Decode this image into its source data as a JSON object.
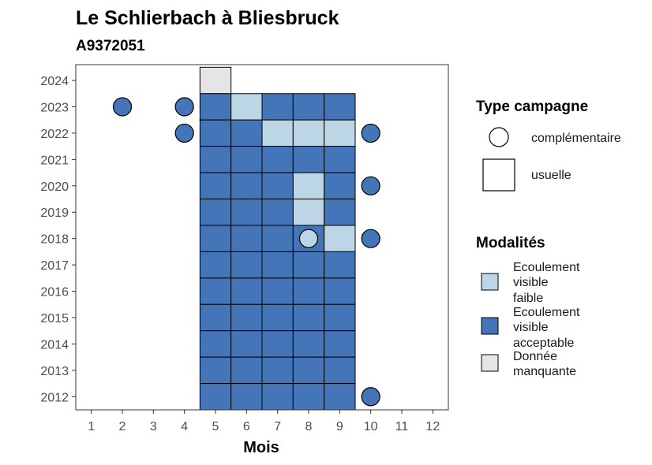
{
  "chart_data": {
    "type": "heatmap",
    "title": "Le Schlierbach à Bliesbruck",
    "subtitle": "A9372051",
    "xlabel": "Mois",
    "ylabel": "",
    "x_ticks": [
      "1",
      "2",
      "3",
      "4",
      "5",
      "6",
      "7",
      "8",
      "9",
      "10",
      "11",
      "12"
    ],
    "y_ticks": [
      "2012",
      "2013",
      "2014",
      "2015",
      "2016",
      "2017",
      "2018",
      "2019",
      "2020",
      "2021",
      "2022",
      "2023",
      "2024"
    ],
    "xlim": [
      0.5,
      12.5
    ],
    "ylim": [
      2011.5,
      2024.6
    ],
    "grid": false,
    "legend_position": "right",
    "colors": {
      "faible": "#bcd6e6",
      "acceptable": "#4375b8",
      "manquante": "#e5e5e5"
    },
    "legends": {
      "type": {
        "title": "Type campagne",
        "items": [
          {
            "key": "complementaire",
            "label": "complémentaire",
            "shape": "circle"
          },
          {
            "key": "usuelle",
            "label": "usuelle",
            "shape": "square"
          }
        ]
      },
      "modalites": {
        "title": "Modalités",
        "items": [
          {
            "key": "faible",
            "label": "Ecoulement visible faible"
          },
          {
            "key": "acceptable",
            "label": "Ecoulement visible acceptable"
          },
          {
            "key": "manquante",
            "label": "Donnée manquante"
          }
        ]
      }
    },
    "observations": [
      {
        "year": 2024,
        "month": 5,
        "modalite": "manquante",
        "type": "usuelle"
      },
      {
        "year": 2023,
        "month": 2,
        "modalite": "acceptable",
        "type": "complementaire"
      },
      {
        "year": 2023,
        "month": 4,
        "modalite": "acceptable",
        "type": "complementaire"
      },
      {
        "year": 2023,
        "month": 5,
        "modalite": "acceptable",
        "type": "usuelle"
      },
      {
        "year": 2023,
        "month": 6,
        "modalite": "faible",
        "type": "usuelle"
      },
      {
        "year": 2023,
        "month": 7,
        "modalite": "acceptable",
        "type": "usuelle"
      },
      {
        "year": 2023,
        "month": 8,
        "modalite": "acceptable",
        "type": "usuelle"
      },
      {
        "year": 2023,
        "month": 9,
        "modalite": "acceptable",
        "type": "usuelle"
      },
      {
        "year": 2022,
        "month": 4,
        "modalite": "acceptable",
        "type": "complementaire"
      },
      {
        "year": 2022,
        "month": 5,
        "modalite": "acceptable",
        "type": "usuelle"
      },
      {
        "year": 2022,
        "month": 6,
        "modalite": "acceptable",
        "type": "usuelle"
      },
      {
        "year": 2022,
        "month": 7,
        "modalite": "faible",
        "type": "usuelle"
      },
      {
        "year": 2022,
        "month": 8,
        "modalite": "faible",
        "type": "usuelle"
      },
      {
        "year": 2022,
        "month": 9,
        "modalite": "faible",
        "type": "usuelle"
      },
      {
        "year": 2022,
        "month": 10,
        "modalite": "acceptable",
        "type": "complementaire"
      },
      {
        "year": 2021,
        "month": 5,
        "modalite": "acceptable",
        "type": "usuelle"
      },
      {
        "year": 2021,
        "month": 6,
        "modalite": "acceptable",
        "type": "usuelle"
      },
      {
        "year": 2021,
        "month": 7,
        "modalite": "acceptable",
        "type": "usuelle"
      },
      {
        "year": 2021,
        "month": 8,
        "modalite": "acceptable",
        "type": "usuelle"
      },
      {
        "year": 2021,
        "month": 9,
        "modalite": "acceptable",
        "type": "usuelle"
      },
      {
        "year": 2020,
        "month": 5,
        "modalite": "acceptable",
        "type": "usuelle"
      },
      {
        "year": 2020,
        "month": 6,
        "modalite": "acceptable",
        "type": "usuelle"
      },
      {
        "year": 2020,
        "month": 7,
        "modalite": "acceptable",
        "type": "usuelle"
      },
      {
        "year": 2020,
        "month": 8,
        "modalite": "faible",
        "type": "usuelle"
      },
      {
        "year": 2020,
        "month": 9,
        "modalite": "acceptable",
        "type": "usuelle"
      },
      {
        "year": 2020,
        "month": 10,
        "modalite": "acceptable",
        "type": "complementaire"
      },
      {
        "year": 2019,
        "month": 5,
        "modalite": "acceptable",
        "type": "usuelle"
      },
      {
        "year": 2019,
        "month": 6,
        "modalite": "acceptable",
        "type": "usuelle"
      },
      {
        "year": 2019,
        "month": 7,
        "modalite": "acceptable",
        "type": "usuelle"
      },
      {
        "year": 2019,
        "month": 8,
        "modalite": "faible",
        "type": "usuelle"
      },
      {
        "year": 2019,
        "month": 9,
        "modalite": "acceptable",
        "type": "usuelle"
      },
      {
        "year": 2018,
        "month": 5,
        "modalite": "acceptable",
        "type": "usuelle"
      },
      {
        "year": 2018,
        "month": 6,
        "modalite": "acceptable",
        "type": "usuelle"
      },
      {
        "year": 2018,
        "month": 7,
        "modalite": "acceptable",
        "type": "usuelle"
      },
      {
        "year": 2018,
        "month": 8,
        "modalite": "acceptable",
        "type": "usuelle"
      },
      {
        "year": 2018,
        "month": 8,
        "modalite": "faible",
        "type": "complementaire"
      },
      {
        "year": 2018,
        "month": 9,
        "modalite": "faible",
        "type": "usuelle"
      },
      {
        "year": 2018,
        "month": 10,
        "modalite": "acceptable",
        "type": "complementaire"
      },
      {
        "year": 2017,
        "month": 5,
        "modalite": "acceptable",
        "type": "usuelle"
      },
      {
        "year": 2017,
        "month": 6,
        "modalite": "acceptable",
        "type": "usuelle"
      },
      {
        "year": 2017,
        "month": 7,
        "modalite": "acceptable",
        "type": "usuelle"
      },
      {
        "year": 2017,
        "month": 8,
        "modalite": "acceptable",
        "type": "usuelle"
      },
      {
        "year": 2017,
        "month": 9,
        "modalite": "acceptable",
        "type": "usuelle"
      },
      {
        "year": 2016,
        "month": 5,
        "modalite": "acceptable",
        "type": "usuelle"
      },
      {
        "year": 2016,
        "month": 6,
        "modalite": "acceptable",
        "type": "usuelle"
      },
      {
        "year": 2016,
        "month": 7,
        "modalite": "acceptable",
        "type": "usuelle"
      },
      {
        "year": 2016,
        "month": 8,
        "modalite": "acceptable",
        "type": "usuelle"
      },
      {
        "year": 2016,
        "month": 9,
        "modalite": "acceptable",
        "type": "usuelle"
      },
      {
        "year": 2015,
        "month": 5,
        "modalite": "acceptable",
        "type": "usuelle"
      },
      {
        "year": 2015,
        "month": 6,
        "modalite": "acceptable",
        "type": "usuelle"
      },
      {
        "year": 2015,
        "month": 7,
        "modalite": "acceptable",
        "type": "usuelle"
      },
      {
        "year": 2015,
        "month": 8,
        "modalite": "acceptable",
        "type": "usuelle"
      },
      {
        "year": 2015,
        "month": 9,
        "modalite": "acceptable",
        "type": "usuelle"
      },
      {
        "year": 2014,
        "month": 5,
        "modalite": "acceptable",
        "type": "usuelle"
      },
      {
        "year": 2014,
        "month": 6,
        "modalite": "acceptable",
        "type": "usuelle"
      },
      {
        "year": 2014,
        "month": 7,
        "modalite": "acceptable",
        "type": "usuelle"
      },
      {
        "year": 2014,
        "month": 8,
        "modalite": "acceptable",
        "type": "usuelle"
      },
      {
        "year": 2014,
        "month": 9,
        "modalite": "acceptable",
        "type": "usuelle"
      },
      {
        "year": 2013,
        "month": 5,
        "modalite": "acceptable",
        "type": "usuelle"
      },
      {
        "year": 2013,
        "month": 6,
        "modalite": "acceptable",
        "type": "usuelle"
      },
      {
        "year": 2013,
        "month": 7,
        "modalite": "acceptable",
        "type": "usuelle"
      },
      {
        "year": 2013,
        "month": 8,
        "modalite": "acceptable",
        "type": "usuelle"
      },
      {
        "year": 2013,
        "month": 9,
        "modalite": "acceptable",
        "type": "usuelle"
      },
      {
        "year": 2012,
        "month": 5,
        "modalite": "acceptable",
        "type": "usuelle"
      },
      {
        "year": 2012,
        "month": 6,
        "modalite": "acceptable",
        "type": "usuelle"
      },
      {
        "year": 2012,
        "month": 7,
        "modalite": "acceptable",
        "type": "usuelle"
      },
      {
        "year": 2012,
        "month": 8,
        "modalite": "acceptable",
        "type": "usuelle"
      },
      {
        "year": 2012,
        "month": 9,
        "modalite": "acceptable",
        "type": "usuelle"
      },
      {
        "year": 2012,
        "month": 10,
        "modalite": "acceptable",
        "type": "complementaire"
      }
    ]
  }
}
